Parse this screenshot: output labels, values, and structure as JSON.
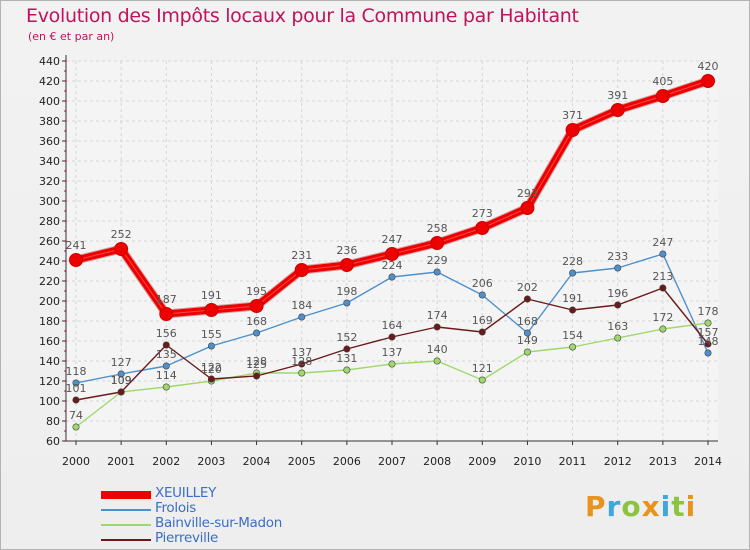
{
  "header": {
    "title": "Evolution des Impôts locaux pour la Commune par Habitant",
    "subtitle": "(en € et par an)"
  },
  "logo": {
    "text": "Proxiti",
    "letters": [
      {
        "ch": "P",
        "color": "#e8931e"
      },
      {
        "ch": "r",
        "color": "#3fa7dc"
      },
      {
        "ch": "o",
        "color": "#8cc43f"
      },
      {
        "ch": "x",
        "color": "#e8931e"
      },
      {
        "ch": "i",
        "color": "#3fa7dc"
      },
      {
        "ch": "t",
        "color": "#8cc43f"
      },
      {
        "ch": "i",
        "color": "#e8931e"
      }
    ]
  },
  "chart_data": {
    "type": "line",
    "title": "Evolution des Impôts locaux pour la Commune par Habitant",
    "subtitle": "(en € et par an)",
    "x": [
      2000,
      2001,
      2002,
      2003,
      2004,
      2005,
      2006,
      2007,
      2008,
      2009,
      2010,
      2011,
      2012,
      2013,
      2014
    ],
    "ylim": [
      60,
      440
    ],
    "y_ticks": [
      60,
      80,
      100,
      120,
      140,
      160,
      180,
      200,
      220,
      240,
      260,
      280,
      300,
      320,
      340,
      360,
      380,
      400,
      420,
      440
    ],
    "grid": true,
    "legend_position": "bottom-left",
    "series": [
      {
        "name": "XEUILLEY",
        "color": "#ee0000",
        "values": [
          241,
          252,
          187,
          191,
          195,
          231,
          236,
          247,
          258,
          273,
          293,
          371,
          391,
          405,
          420
        ]
      },
      {
        "name": "Frolois",
        "color": "#4d90cc",
        "values": [
          118,
          127,
          135,
          155,
          168,
          184,
          198,
          224,
          229,
          206,
          168,
          228,
          233,
          247,
          148
        ]
      },
      {
        "name": "Bainville-sur-Madon",
        "color": "#9fd86a",
        "values": [
          74,
          109,
          114,
          120,
          128,
          128,
          131,
          137,
          140,
          121,
          149,
          154,
          163,
          172,
          178
        ]
      },
      {
        "name": "Pierreville",
        "color": "#6b1a1a",
        "values": [
          101,
          109,
          156,
          122,
          125,
          137,
          152,
          164,
          174,
          169,
          202,
          191,
          196,
          213,
          157
        ]
      }
    ],
    "data_labels": {
      "XEUILLEY": [
        "241",
        "252",
        "187",
        "191",
        "195",
        "231",
        "236",
        "247",
        "258",
        "273",
        "293",
        "371",
        "391",
        "405",
        "420"
      ],
      "Frolois": [
        "118",
        "127",
        "135",
        "155",
        "168",
        "184",
        "198",
        "224",
        "229",
        "206",
        "168",
        "228",
        "233",
        "247",
        "148"
      ],
      "Bainville-sur-Madon": [
        "74",
        "109",
        "114",
        "120",
        "128",
        "128",
        "131",
        "137",
        "140",
        "121",
        "149",
        "154",
        "163",
        "172",
        "178"
      ],
      "Pierreville": [
        "101",
        "109",
        "156",
        "122",
        "125",
        "137",
        "152",
        "164",
        "174",
        "169",
        "202",
        "191",
        "196",
        "213",
        "157"
      ]
    }
  }
}
